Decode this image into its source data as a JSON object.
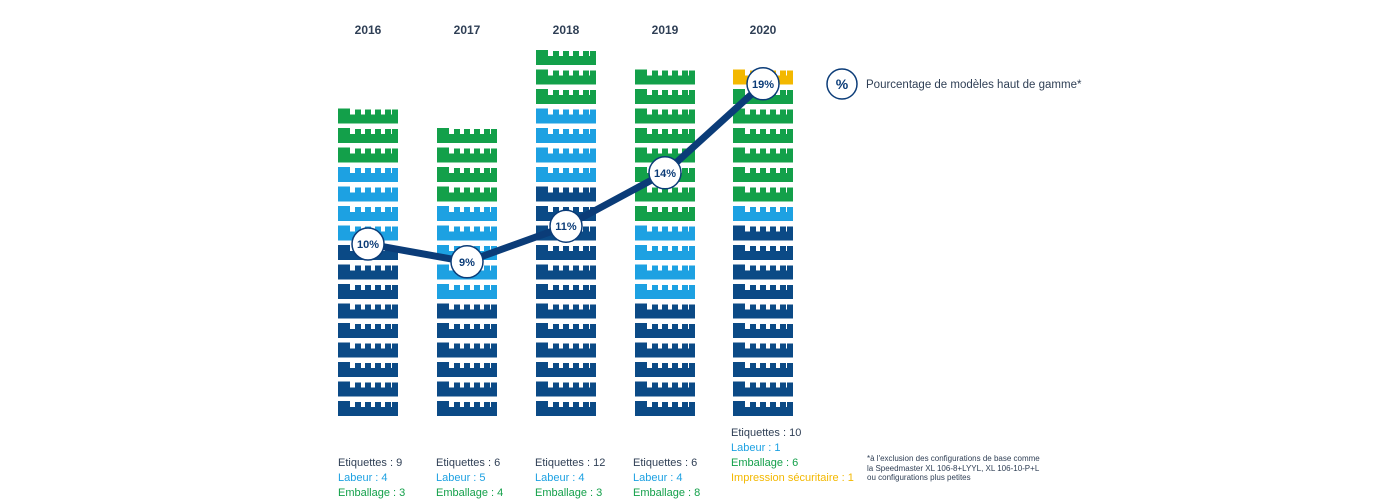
{
  "chart_data": {
    "type": "bar",
    "stacked": true,
    "unit_icon": "printing-press-icon",
    "categories": [
      "2016",
      "2017",
      "2018",
      "2019",
      "2020"
    ],
    "series": [
      {
        "name": "Etiquettes",
        "color": "#0b4a86",
        "values": [
          9,
          6,
          12,
          6,
          10
        ]
      },
      {
        "name": "Labeur",
        "color": "#1da1e2",
        "values": [
          4,
          5,
          4,
          4,
          1
        ]
      },
      {
        "name": "Emballage",
        "color": "#13a04a",
        "values": [
          3,
          4,
          3,
          8,
          6
        ]
      },
      {
        "name": "Impression sécuritaire",
        "color": "#f3b800",
        "values": [
          0,
          0,
          0,
          0,
          1
        ]
      }
    ],
    "line": {
      "color": "#0b3c78",
      "values": [
        10,
        9,
        11,
        14,
        19
      ],
      "labels": [
        "10%",
        "9%",
        "11%",
        "14%",
        "19%"
      ]
    },
    "legend": {
      "symbol": "%",
      "text": "Pourcentage de modèles haut de gamme*",
      "placement": "top-right"
    },
    "category_counts": [
      [
        {
          "label": "Etiquettes : 9",
          "series": 0
        },
        {
          "label": "Labeur : 4",
          "series": 1
        },
        {
          "label": "Emballage : 3",
          "series": 2
        }
      ],
      [
        {
          "label": "Etiquettes : 6",
          "series": 0
        },
        {
          "label": "Labeur : 5",
          "series": 1
        },
        {
          "label": "Emballage : 4",
          "series": 2
        }
      ],
      [
        {
          "label": "Etiquettes : 12",
          "series": 0
        },
        {
          "label": "Labeur : 4",
          "series": 1
        },
        {
          "label": "Emballage : 3",
          "series": 2
        }
      ],
      [
        {
          "label": "Etiquettes : 6",
          "series": 0
        },
        {
          "label": "Labeur : 4",
          "series": 1
        },
        {
          "label": "Emballage : 8",
          "series": 2
        }
      ],
      [
        {
          "label": "Etiquettes : 10",
          "series": 0
        },
        {
          "label": "Labeur : 1",
          "series": 1
        },
        {
          "label": "Emballage : 6",
          "series": 2
        },
        {
          "label": "Impression sécuritaire : 1",
          "series": 3
        }
      ]
    ],
    "footnote": [
      "*à l'exclusion des configurations de base comme",
      "la Speedmaster XL 106-8+LYYL, XL 106-10-P+L",
      "ou configurations plus petites"
    ]
  }
}
